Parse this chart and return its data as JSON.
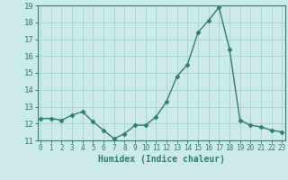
{
  "x": [
    0,
    1,
    2,
    3,
    4,
    5,
    6,
    7,
    8,
    9,
    10,
    11,
    12,
    13,
    14,
    15,
    16,
    17,
    18,
    19,
    20,
    21,
    22,
    23
  ],
  "y": [
    12.3,
    12.3,
    12.2,
    12.5,
    12.7,
    12.1,
    11.6,
    11.1,
    11.4,
    11.9,
    11.9,
    12.4,
    13.3,
    14.8,
    15.5,
    17.4,
    18.1,
    18.9,
    16.4,
    12.2,
    11.9,
    11.8,
    11.6,
    11.5
  ],
  "xlabel": "Humidex (Indice chaleur)",
  "line_color": "#2e7d6e",
  "marker": "D",
  "marker_size": 2.5,
  "bg_color": "#cceae7",
  "grid_color": "#aed4d0",
  "axis_color": "#2e7d6e",
  "tick_label_color": "#2e7d6e",
  "xlabel_color": "#2e7d6e",
  "ylim": [
    11,
    19
  ],
  "yticks": [
    11,
    12,
    13,
    14,
    15,
    16,
    17,
    18,
    19
  ],
  "xticks": [
    0,
    1,
    2,
    3,
    4,
    5,
    6,
    7,
    8,
    9,
    10,
    11,
    12,
    13,
    14,
    15,
    16,
    17,
    18,
    19,
    20,
    21,
    22,
    23
  ],
  "xlim": [
    -0.3,
    23.3
  ]
}
